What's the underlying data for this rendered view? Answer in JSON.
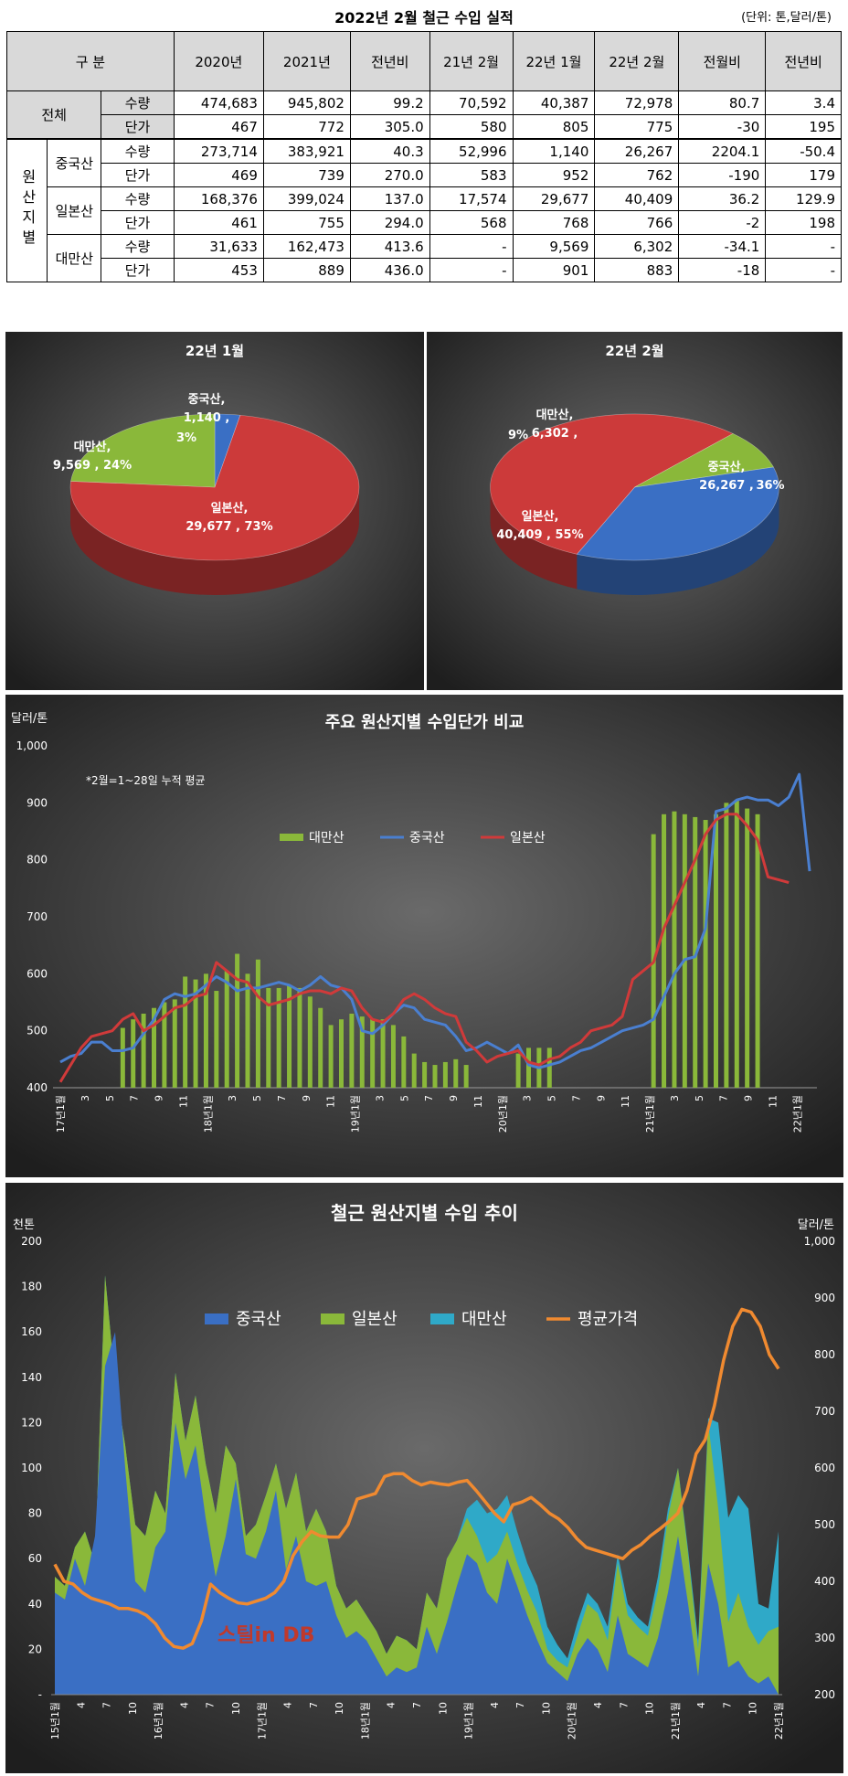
{
  "title": "2022년 2월 철근 수입 실적",
  "unit": "(단위: 톤,달러/톤)",
  "table": {
    "header": {
      "gubun": "구 분",
      "cols": [
        "2020년",
        "2021년",
        "전년비",
        "21년 2월",
        "22년 1월",
        "22년 2월",
        "전월비",
        "전년비"
      ]
    },
    "total": {
      "label": "전체",
      "rows": [
        {
          "metric": "수량",
          "vals": [
            "474,683",
            "945,802",
            "99.2",
            "70,592",
            "40,387",
            "72,978",
            "80.7",
            "3.4"
          ]
        },
        {
          "metric": "단가",
          "vals": [
            "467",
            "772",
            "305.0",
            "580",
            "805",
            "775",
            "-30",
            "195"
          ]
        }
      ]
    },
    "origin_label": "원산지별",
    "groups": [
      {
        "name": "중국산",
        "rows": [
          {
            "metric": "수량",
            "vals": [
              "273,714",
              "383,921",
              "40.3",
              "52,996",
              "1,140",
              "26,267",
              "2204.1",
              "-50.4"
            ]
          },
          {
            "metric": "단가",
            "vals": [
              "469",
              "739",
              "270.0",
              "583",
              "952",
              "762",
              "-190",
              "179"
            ]
          }
        ]
      },
      {
        "name": "일본산",
        "rows": [
          {
            "metric": "수량",
            "vals": [
              "168,376",
              "399,024",
              "137.0",
              "17,574",
              "29,677",
              "40,409",
              "36.2",
              "129.9"
            ]
          },
          {
            "metric": "단가",
            "vals": [
              "461",
              "755",
              "294.0",
              "568",
              "768",
              "766",
              "-2",
              "198"
            ]
          }
        ]
      },
      {
        "name": "대만산",
        "rows": [
          {
            "metric": "수량",
            "vals": [
              "31,633",
              "162,473",
              "413.6",
              "-",
              "9,569",
              "6,302",
              "-34.1",
              "-"
            ]
          },
          {
            "metric": "단가",
            "vals": [
              "453",
              "889",
              "436.0",
              "-",
              "901",
              "883",
              "-18",
              "-"
            ]
          }
        ]
      }
    ]
  },
  "chart_data": [
    {
      "type": "pie",
      "title": "22년 1월",
      "slices": [
        {
          "name": "중국산",
          "value": 1140,
          "label_name": "중국산,",
          "label_value": "1,140 ,",
          "label_pct": "3%",
          "color": "#3a6fc4"
        },
        {
          "name": "일본산",
          "value": 29677,
          "label_name": "일본산,",
          "label_value": "29,677 , 73%",
          "label_pct": "",
          "color": "#cc3a3a"
        },
        {
          "name": "대만산",
          "value": 9569,
          "label_name": "대만산,",
          "label_value": "9,569 , 24%",
          "label_pct": "",
          "color": "#8ab83a"
        }
      ]
    },
    {
      "type": "pie",
      "title": "22년 2월",
      "slices": [
        {
          "name": "중국산",
          "value": 26267,
          "label_name": "중국산,",
          "label_value": "26,267 ,",
          "label_pct": "36%",
          "color": "#3a6fc4"
        },
        {
          "name": "일본산",
          "value": 40409,
          "label_name": "일본산,",
          "label_value": "40,409 , 55%",
          "label_pct": "",
          "color": "#cc3a3a"
        },
        {
          "name": "대만산",
          "value": 6302,
          "label_name": "대만산,",
          "label_value": "6,302 ,",
          "label_pct": "9%",
          "color": "#8ab83a"
        }
      ]
    },
    {
      "type": "bar+line",
      "title": "주요 원산지별 수입단가 비교",
      "ylabel": "달러/톤",
      "note": "*2월=1~28일 누적 평균",
      "ylim": [
        400,
        1000
      ],
      "yticks": [
        "400",
        "500",
        "600",
        "700",
        "800",
        "900",
        "1,000"
      ],
      "xticks": [
        "17년1월",
        "3",
        "5",
        "7",
        "9",
        "11",
        "18년1월",
        "3",
        "5",
        "7",
        "9",
        "11",
        "19년1월",
        "3",
        "5",
        "7",
        "9",
        "11",
        "20년1월",
        "3",
        "5",
        "7",
        "9",
        "11",
        "21년1월",
        "3",
        "5",
        "7",
        "9",
        "11",
        "22년1월"
      ],
      "legend": [
        "대만산",
        "중국산",
        "일본산"
      ],
      "colors": {
        "대만산": "#8ab83a",
        "중국산": "#4a7fd0",
        "일본산": "#d03a3a"
      },
      "taiwan": [
        null,
        null,
        null,
        null,
        null,
        null,
        505,
        520,
        530,
        540,
        550,
        555,
        595,
        590,
        600,
        570,
        605,
        635,
        600,
        625,
        575,
        575,
        580,
        575,
        560,
        540,
        510,
        520,
        530,
        525,
        520,
        520,
        510,
        490,
        460,
        445,
        440,
        445,
        450,
        440,
        null,
        null,
        null,
        null,
        460,
        470,
        470,
        470,
        null,
        null,
        null,
        null,
        null,
        null,
        null,
        null,
        null,
        845,
        880,
        885,
        880,
        875,
        870,
        880,
        900,
        905,
        890,
        880
      ],
      "china": [
        445,
        455,
        460,
        480,
        480,
        465,
        465,
        470,
        495,
        520,
        555,
        565,
        560,
        565,
        580,
        595,
        585,
        570,
        575,
        575,
        580,
        585,
        580,
        570,
        580,
        595,
        580,
        575,
        555,
        500,
        495,
        510,
        530,
        545,
        540,
        520,
        515,
        510,
        490,
        465,
        470,
        480,
        470,
        460,
        475,
        440,
        435,
        440,
        445,
        455,
        465,
        470,
        480,
        490,
        500,
        505,
        510,
        520,
        560,
        600,
        625,
        630,
        680,
        885,
        890,
        905,
        910,
        905,
        905,
        895,
        910,
        950,
        780
      ],
      "japan": [
        410,
        440,
        470,
        490,
        495,
        500,
        520,
        530,
        500,
        510,
        525,
        540,
        545,
        560,
        565,
        620,
        605,
        590,
        585,
        560,
        545,
        550,
        555,
        565,
        570,
        570,
        565,
        575,
        570,
        540,
        520,
        515,
        530,
        555,
        565,
        555,
        540,
        530,
        525,
        480,
        465,
        445,
        455,
        460,
        465,
        445,
        440,
        450,
        455,
        470,
        480,
        500,
        505,
        510,
        525,
        590,
        605,
        620,
        680,
        720,
        760,
        800,
        845,
        870,
        880,
        880,
        860,
        835,
        770,
        765,
        760
      ]
    },
    {
      "type": "area+line",
      "title": "철근 원산지별 수입 추이",
      "ylabel": "천톤",
      "y2label": "달러/톤",
      "ylim": [
        0,
        200
      ],
      "y2lim": [
        200,
        1000
      ],
      "yticks": [
        "-",
        "20",
        "40",
        "60",
        "80",
        "100",
        "120",
        "140",
        "160",
        "180",
        "200"
      ],
      "y2ticks": [
        "200",
        "300",
        "400",
        "500",
        "600",
        "700",
        "800",
        "900",
        "1,000"
      ],
      "xticks": [
        "15년1월",
        "4",
        "7",
        "10",
        "16년1월",
        "4",
        "7",
        "10",
        "17년1월",
        "4",
        "7",
        "10",
        "18년1월",
        "4",
        "7",
        "10",
        "19년1월",
        "4",
        "7",
        "10",
        "20년1월",
        "4",
        "7",
        "10",
        "21년1월",
        "4",
        "7",
        "10",
        "22년1월"
      ],
      "legend": [
        "중국산",
        "일본산",
        "대만산",
        "평균가격"
      ],
      "colors": {
        "중국산": "#3a6fc4",
        "일본산": "#8ab83a",
        "대만산": "#2fa9c8",
        "평균가격": "#f08a30"
      },
      "china": [
        45,
        42,
        60,
        48,
        70,
        145,
        160,
        100,
        50,
        45,
        65,
        72,
        120,
        95,
        110,
        78,
        52,
        70,
        95,
        62,
        60,
        72,
        90,
        55,
        70,
        50,
        48,
        50,
        35,
        25,
        28,
        24,
        16,
        8,
        12,
        10,
        12,
        30,
        18,
        32,
        48,
        62,
        58,
        45,
        40,
        60,
        48,
        35,
        24,
        14,
        10,
        6,
        18,
        25,
        20,
        10,
        35,
        18,
        15,
        12,
        25,
        45,
        70,
        40,
        8,
        58,
        40,
        12,
        15,
        8,
        5,
        8,
        0
      ],
      "japan": [
        52,
        48,
        65,
        72,
        58,
        185,
        138,
        110,
        75,
        70,
        90,
        80,
        142,
        112,
        132,
        102,
        80,
        110,
        102,
        70,
        75,
        88,
        102,
        82,
        98,
        72,
        82,
        72,
        48,
        38,
        42,
        35,
        28,
        18,
        26,
        24,
        20,
        45,
        38,
        60,
        68,
        78,
        70,
        58,
        62,
        72,
        58,
        46,
        36,
        20,
        15,
        12,
        26,
        40,
        36,
        24,
        58,
        35,
        30,
        26,
        46,
        78,
        100,
        62,
        20,
        120,
        82,
        32,
        45,
        30,
        22,
        28,
        30
      ],
      "taiwan": [
        52,
        48,
        65,
        72,
        58,
        185,
        138,
        110,
        75,
        70,
        90,
        80,
        142,
        112,
        132,
        102,
        80,
        110,
        102,
        70,
        75,
        88,
        102,
        82,
        98,
        72,
        82,
        72,
        48,
        38,
        42,
        35,
        28,
        18,
        26,
        24,
        20,
        45,
        38,
        60,
        68,
        82,
        86,
        80,
        82,
        88,
        72,
        58,
        48,
        30,
        22,
        16,
        32,
        45,
        40,
        30,
        62,
        40,
        34,
        30,
        52,
        82,
        100,
        64,
        24,
        122,
        120,
        78,
        88,
        82,
        40,
        38,
        72
      ],
      "price": [
        430,
        400,
        395,
        380,
        370,
        365,
        360,
        352,
        352,
        348,
        340,
        325,
        300,
        285,
        282,
        290,
        330,
        395,
        380,
        370,
        362,
        360,
        365,
        370,
        380,
        400,
        445,
        470,
        488,
        480,
        478,
        478,
        500,
        545,
        550,
        555,
        585,
        590,
        590,
        578,
        570,
        575,
        572,
        570,
        575,
        578,
        560,
        540,
        520,
        505,
        535,
        540,
        548,
        535,
        520,
        510,
        495,
        475,
        460,
        455,
        450,
        445,
        440,
        455,
        465,
        480,
        492,
        505,
        520,
        560,
        625,
        650,
        710,
        790,
        850,
        880,
        875,
        850,
        800,
        775
      ]
    }
  ],
  "watermark": "스틸in DB"
}
